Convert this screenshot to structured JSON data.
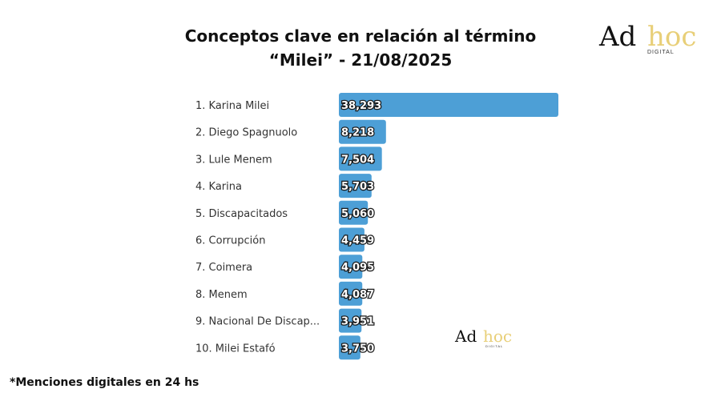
{
  "title_line1": "Conceptos clave en relación al término",
  "title_line2": "“Milei” - 21/08/2025",
  "logo": {
    "part1": "Ad",
    "part2": "hoc",
    "sub": "DIGITAL"
  },
  "footnote": "*Menciones digitales en 24 hs",
  "colors": {
    "bar": "#4d9fd6",
    "logo_accent": "#e8cf78"
  },
  "chart_data": {
    "type": "bar",
    "orientation": "horizontal",
    "categories": [
      "1. Karina Milei",
      "2. Diego Spagnuolo",
      "3. Lule Menem",
      "4. Karina",
      "5. Discapacitados",
      "6. Corrupción",
      "7. Coimera",
      "8. Menem",
      "9. Nacional De Discap...",
      "10. Milei Estafó"
    ],
    "values": [
      38293,
      8218,
      7504,
      5703,
      5060,
      4459,
      4095,
      4087,
      3951,
      3750
    ],
    "value_labels": [
      "38,293",
      "8,218",
      "7,504",
      "5,703",
      "5,060",
      "4,459",
      "4,095",
      "4,087",
      "3,951",
      "3,750"
    ],
    "xlim": [
      0,
      38293
    ]
  }
}
